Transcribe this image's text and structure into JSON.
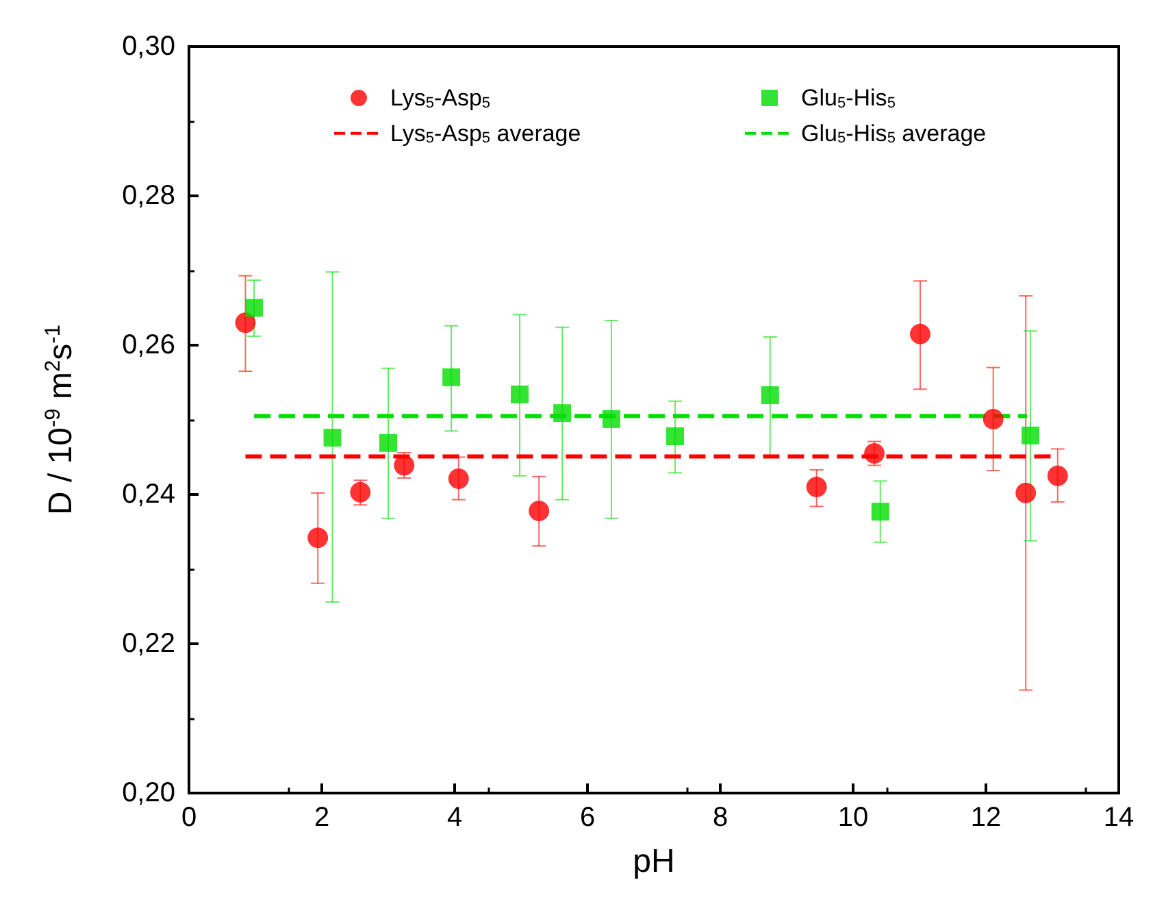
{
  "chart_data": {
    "type": "scatter",
    "xlabel": "pH",
    "ylabel": "D / 10$^{-9}$ m$^{2}$s$^{-1}$",
    "xlim": [
      0,
      14
    ],
    "xticks": [
      0,
      2,
      4,
      6,
      8,
      10,
      12,
      14
    ],
    "ylim": [
      0.2,
      0.3
    ],
    "yticks": [
      {
        "value": 0.2,
        "label": "0,20"
      },
      {
        "value": 0.22,
        "label": "0,22"
      },
      {
        "value": 0.24,
        "label": "0,24"
      },
      {
        "value": 0.26,
        "label": "0,26"
      },
      {
        "value": 0.28,
        "label": "0,28"
      },
      {
        "value": 0.3,
        "label": "0,30"
      }
    ],
    "grid": false,
    "legend": "top",
    "series": [
      {
        "name": "Lys$_{5}$-Asp$_{5}$",
        "color": "#ff0000",
        "marker": "circle",
        "x": [
          0.85,
          1.94,
          2.58,
          3.24,
          4.06,
          5.27,
          9.45,
          10.32,
          11.01,
          12.11,
          12.6,
          13.08
        ],
        "values": [
          0.263,
          0.2342,
          0.2403,
          0.2439,
          0.2421,
          0.2378,
          0.241,
          0.2455,
          0.2615,
          0.2501,
          0.2402,
          0.2425
        ],
        "errors": [
          [
            0.2565,
            0.2693
          ],
          [
            0.2281,
            0.2402
          ],
          [
            0.2386,
            0.2419
          ],
          [
            0.2422,
            0.2456
          ],
          [
            0.2393,
            0.245
          ],
          [
            0.2331,
            0.2424
          ],
          [
            0.2384,
            0.2433
          ],
          [
            0.2439,
            0.2471
          ],
          [
            0.2541,
            0.2686
          ],
          [
            0.2432,
            0.257
          ],
          [
            0.2138,
            0.2666
          ],
          [
            0.239,
            0.2461
          ]
        ]
      },
      {
        "name": "Glu$_{5}$-His$_{5}$",
        "color": "#00dd00",
        "marker": "square",
        "x": [
          0.98,
          2.16,
          3.0,
          3.95,
          4.98,
          5.62,
          6.36,
          7.32,
          8.75,
          10.41,
          12.67
        ],
        "values": [
          0.265,
          0.2476,
          0.2469,
          0.2557,
          0.2534,
          0.2509,
          0.2501,
          0.2478,
          0.2533,
          0.2377,
          0.2479
        ],
        "errors": [
          [
            0.2612,
            0.2687
          ],
          [
            0.2256,
            0.2698
          ],
          [
            0.2368,
            0.2569
          ],
          [
            0.2485,
            0.2626
          ],
          [
            0.2425,
            0.2641
          ],
          [
            0.2393,
            0.2624
          ],
          [
            0.2368,
            0.2633
          ],
          [
            0.2429,
            0.2525
          ],
          [
            0.2452,
            0.2611
          ],
          [
            0.2336,
            0.2418
          ],
          [
            0.2338,
            0.2619
          ]
        ]
      },
      {
        "name": "Lys$_{5}$-Asp$_{5}$ average",
        "type": "line",
        "color": "#ff0000",
        "marker": "none",
        "line_style": "dashed",
        "x": [
          0.85,
          13.08
        ],
        "values": [
          0.2451,
          0.2451
        ]
      },
      {
        "name": "Glu$_{5}$-His$_{5}$ average",
        "type": "line",
        "color": "#00dd00",
        "marker": "none",
        "line_style": "dashed",
        "x": [
          0.98,
          12.62
        ],
        "values": [
          0.2505,
          0.2505
        ]
      }
    ]
  }
}
